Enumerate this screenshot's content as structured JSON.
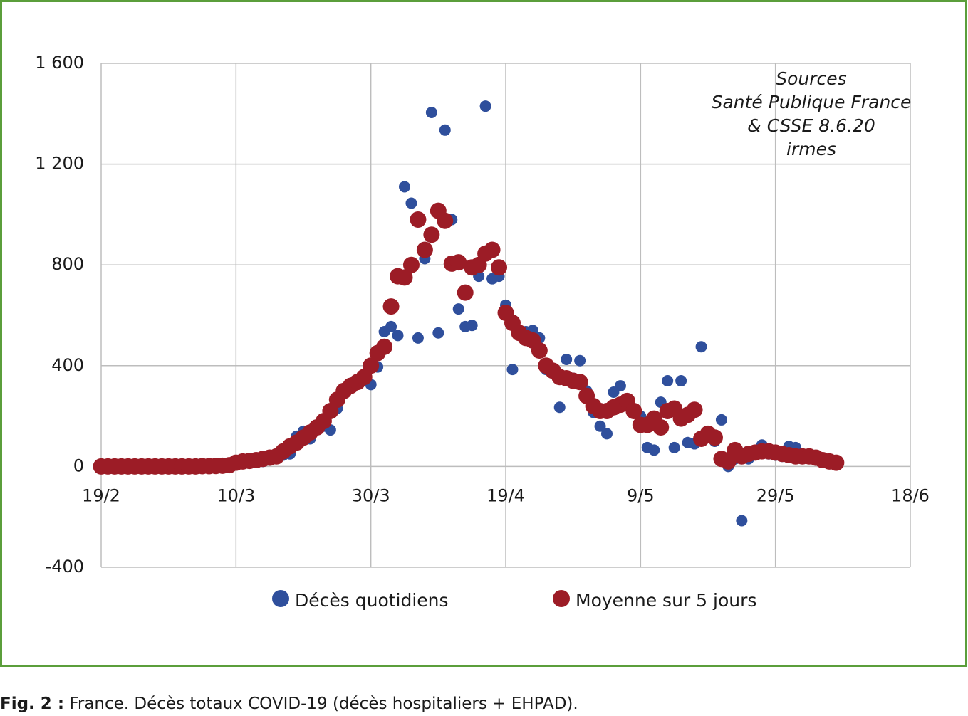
{
  "chart_data": {
    "type": "scatter",
    "annotation": [
      "Sources",
      "Santé Publique France",
      "& CSSE 8.6.20",
      "irmes"
    ],
    "x": [
      "19/2",
      "20/2",
      "21/2",
      "22/2",
      "23/2",
      "24/2",
      "25/2",
      "26/2",
      "27/2",
      "28/2",
      "29/2",
      "1/3",
      "2/3",
      "3/3",
      "4/3",
      "5/3",
      "6/3",
      "7/3",
      "8/3",
      "9/3",
      "10/3",
      "11/3",
      "12/3",
      "13/3",
      "14/3",
      "15/3",
      "16/3",
      "17/3",
      "18/3",
      "19/3",
      "20/3",
      "21/3",
      "22/3",
      "23/3",
      "24/3",
      "25/3",
      "26/3",
      "27/3",
      "28/3",
      "29/3",
      "30/3",
      "31/3",
      "1/4",
      "2/4",
      "3/4",
      "4/4",
      "5/4",
      "6/4",
      "7/4",
      "8/4",
      "9/4",
      "10/4",
      "11/4",
      "12/4",
      "13/4",
      "14/4",
      "15/4",
      "16/4",
      "17/4",
      "18/4",
      "19/4",
      "20/4",
      "21/4",
      "22/4",
      "23/4",
      "24/4",
      "25/4",
      "26/4",
      "27/4",
      "28/4",
      "29/4",
      "30/4",
      "1/5",
      "2/5",
      "3/5",
      "4/5",
      "5/5",
      "6/5",
      "7/5",
      "8/5",
      "9/5",
      "10/5",
      "11/5",
      "12/5",
      "13/5",
      "14/5",
      "15/5",
      "16/5",
      "17/5",
      "18/5",
      "19/5",
      "20/5",
      "21/5",
      "22/5",
      "23/5",
      "24/5",
      "25/5",
      "26/5",
      "27/5",
      "28/5",
      "29/5",
      "30/5",
      "31/5",
      "1/6",
      "2/6",
      "3/6",
      "4/6",
      "5/6",
      "6/6",
      "7/6"
    ],
    "series": [
      {
        "name": "Décès quotidiens",
        "color": "#2f4f9c",
        "values": [
          0,
          0,
          0,
          0,
          0,
          0,
          0,
          1,
          0,
          0,
          0,
          0,
          1,
          0,
          1,
          0,
          2,
          3,
          2,
          4,
          20,
          15,
          25,
          30,
          20,
          35,
          40,
          45,
          50,
          120,
          140,
          110,
          150,
          160,
          145,
          230,
          300,
          330,
          340,
          350,
          325,
          395,
          535,
          555,
          520,
          1110,
          1045,
          510,
          825,
          1405,
          530,
          1335,
          980,
          625,
          555,
          560,
          755,
          1430,
          745,
          755,
          640,
          385,
          540,
          535,
          540,
          510,
          385,
          370,
          235,
          425,
          350,
          420,
          300,
          215,
          160,
          130,
          295,
          320,
          260,
          220,
          200,
          75,
          65,
          255,
          340,
          75,
          340,
          95,
          90,
          475,
          120,
          100,
          185,
          0,
          30,
          -215,
          30,
          55,
          85,
          50,
          45,
          40,
          80,
          75,
          40,
          35,
          30,
          20,
          15,
          10
        ]
      },
      {
        "name": "Moyenne sur 5 jours",
        "color": "#9c1c26",
        "values": [
          0,
          0,
          0,
          0,
          0,
          0,
          0,
          0,
          0,
          0,
          0,
          0,
          0,
          0,
          0,
          1,
          1,
          2,
          3,
          5,
          15,
          20,
          22,
          25,
          30,
          35,
          40,
          60,
          80,
          95,
          115,
          135,
          155,
          180,
          220,
          265,
          300,
          320,
          335,
          355,
          400,
          450,
          475,
          635,
          755,
          750,
          800,
          980,
          860,
          920,
          1015,
          975,
          805,
          810,
          690,
          790,
          800,
          845,
          860,
          790,
          610,
          570,
          530,
          510,
          500,
          460,
          400,
          380,
          355,
          350,
          340,
          335,
          280,
          240,
          220,
          220,
          235,
          245,
          260,
          220,
          165,
          165,
          190,
          155,
          220,
          230,
          190,
          205,
          225,
          110,
          130,
          115,
          30,
          20,
          65,
          40,
          50,
          55,
          60,
          60,
          55,
          50,
          45,
          40,
          40,
          40,
          35,
          25,
          20,
          15
        ]
      }
    ],
    "xlim": [
      "19/2",
      "18/6"
    ],
    "xticks": [
      "19/2",
      "10/3",
      "30/3",
      "19/4",
      "9/5",
      "29/5",
      "18/6"
    ],
    "ylim": [
      -400,
      1600
    ],
    "yticks": [
      -400,
      0,
      400,
      800,
      {
        "value": 1200,
        "label": "1 200"
      },
      {
        "value": 1600,
        "label": "1 600"
      }
    ],
    "grid": true
  },
  "caption": {
    "label": "Fig. 2 :",
    "text": "France. Décès totaux COVID-19 (décès hospitaliers + EHPAD)."
  }
}
